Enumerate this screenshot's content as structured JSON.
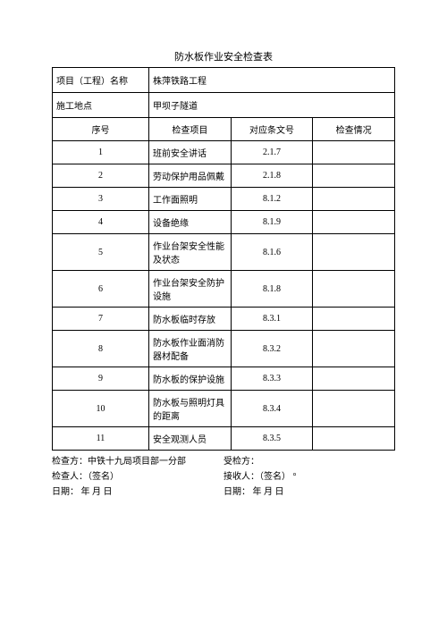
{
  "title": "防水板作业安全检查表",
  "header": {
    "projectNameLabel": "项目（工程）名称",
    "projectNameValue": "株萍铁路工程",
    "siteLabel": "施工地点",
    "siteValue": "甲坝子隧道"
  },
  "columns": {
    "seq": "序号",
    "item": "检查项目",
    "ref": "对应条文号",
    "status": "检查情况"
  },
  "rows": [
    {
      "seq": "1",
      "item": "班前安全讲话",
      "ref": "2.1.7",
      "status": ""
    },
    {
      "seq": "2",
      "item": "劳动保护用品佩戴",
      "ref": "2.1.8",
      "status": ""
    },
    {
      "seq": "3",
      "item": "工作面照明",
      "ref": "8.1.2",
      "status": ""
    },
    {
      "seq": "4",
      "item": "设备绝缘",
      "ref": "8.1.9",
      "status": ""
    },
    {
      "seq": "5",
      "item": "作业台架安全性能及状态",
      "ref": "8.1.6",
      "status": ""
    },
    {
      "seq": "6",
      "item": "作业台架安全防护设施",
      "ref": "8.1.8",
      "status": ""
    },
    {
      "seq": "7",
      "item": "防水板临时存放",
      "ref": "8.3.1",
      "status": ""
    },
    {
      "seq": "8",
      "item": "防水板作业面消防器材配备",
      "ref": "8.3.2",
      "status": ""
    },
    {
      "seq": "9",
      "item": "防水板的保护设施",
      "ref": "8.3.3",
      "status": ""
    },
    {
      "seq": "10",
      "item": "防水板与照明灯具的距离",
      "ref": "8.3.4",
      "status": ""
    },
    {
      "seq": "11",
      "item": "安全观测人员",
      "ref": "8.3.5",
      "status": ""
    }
  ],
  "footer": {
    "checkerSide": "检查方：中铁十九局项目部一分部",
    "receiverSide": "受检方：",
    "checkerSign": "检查人：（签名）",
    "receiverSign": "接收人：（签名）      °",
    "dateLeft": "日期：           年    月         日",
    "dateRight": "日期：           年    月         日"
  }
}
